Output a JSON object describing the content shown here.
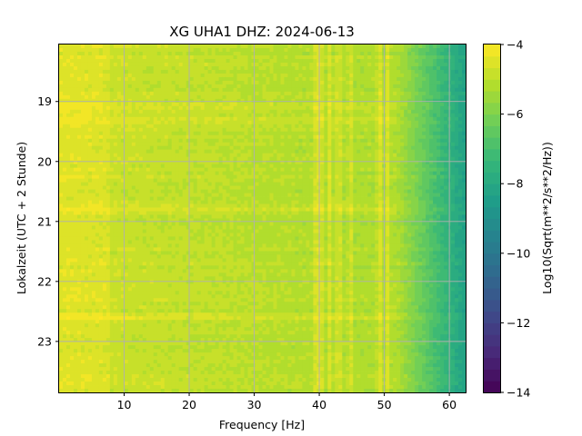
{
  "chart_data": {
    "type": "heatmap",
    "title": "XG UHA1  DHZ: 2024-06-13",
    "xlabel": "Frequency [Hz]",
    "ylabel": "Lokalzeit (UTC + 2 Stunde)",
    "xlim": [
      0,
      62.5
    ],
    "ylim": [
      23.85,
      18.05
    ],
    "xticks": [
      10,
      20,
      30,
      40,
      50,
      60
    ],
    "yticks": [
      19,
      20,
      21,
      22,
      23
    ],
    "grid": true,
    "colorbar": {
      "label": "Log10(Sqrt(m**2/s**2/Hz))",
      "range": [
        -14,
        -4
      ],
      "ticks": [
        -4,
        -6,
        -8,
        -10,
        -12,
        -14
      ],
      "tick_labels": [
        "−4",
        "−6",
        "−8",
        "−10",
        "−12",
        "−14"
      ],
      "colormap": "viridis",
      "levels": 30
    },
    "features": {
      "base_level_low_freq": -4.7,
      "base_level_mid_freq": -5.2,
      "rolloff_start_hz": 52,
      "level_at_max_freq": -8.3,
      "spectral_lines_hz": [
        39.5,
        40.2,
        41.6,
        43.0,
        44.8,
        49.3,
        50.5
      ],
      "bright_bands_time": [
        19.1,
        19.3,
        20.8,
        22.6
      ]
    }
  }
}
